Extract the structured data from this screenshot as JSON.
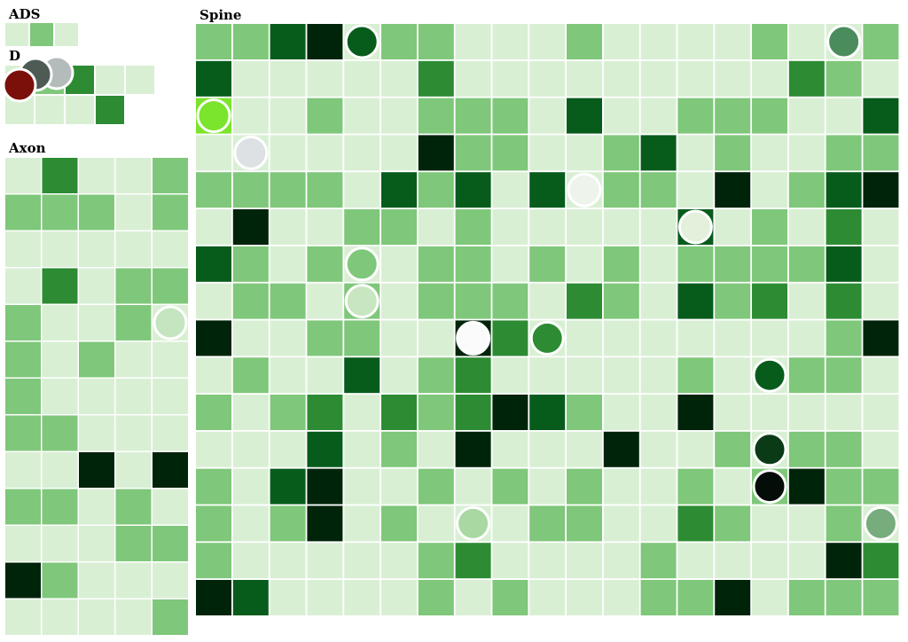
{
  "palette": {
    "0": "#d9efd4",
    "1": "#7fc77a",
    "2": "#2d8c33",
    "3": "#075c1c",
    "4": "#00240a",
    "cell_stroke": "#ffffff",
    "bubble_stroke": "#ffffff"
  },
  "panels": {
    "ads": {
      "title": "ADS"
    },
    "den": {
      "title": "D"
    },
    "axon": {
      "title": "Axon"
    },
    "spine": {
      "title": "Spine"
    }
  },
  "chart_data": [
    {
      "type": "heatmap",
      "name_shown": "ADS",
      "rows": 1,
      "cols": 3,
      "levels": [
        [
          0,
          1,
          0
        ]
      ],
      "markers": []
    },
    {
      "type": "heatmap",
      "name_shown": "D",
      "rows": 2,
      "cols": 5,
      "levels": [
        [
          0,
          1,
          2,
          0,
          0
        ],
        [
          0,
          0,
          0,
          2,
          null
        ]
      ],
      "markers": [
        {
          "row": 0,
          "col": 0,
          "color": "#b4bcbb"
        },
        {
          "row": 0,
          "col": 0,
          "color": "#4d5b54"
        },
        {
          "row": 0,
          "col": 0,
          "color": "#7b0f0a"
        }
      ]
    },
    {
      "type": "heatmap",
      "name_shown": "Axon",
      "rows": 13,
      "cols": 5,
      "levels": [
        [
          0,
          2,
          0,
          0,
          1
        ],
        [
          1,
          1,
          1,
          0,
          1
        ],
        [
          0,
          0,
          0,
          0,
          0
        ],
        [
          0,
          2,
          0,
          1,
          1
        ],
        [
          1,
          0,
          0,
          1,
          0
        ],
        [
          1,
          0,
          1,
          0,
          0
        ],
        [
          1,
          0,
          0,
          0,
          0
        ],
        [
          1,
          1,
          0,
          0,
          0
        ],
        [
          0,
          0,
          4,
          0,
          4
        ],
        [
          1,
          1,
          0,
          1,
          0
        ],
        [
          0,
          0,
          0,
          1,
          1
        ],
        [
          4,
          1,
          0,
          0,
          0
        ],
        [
          0,
          0,
          0,
          0,
          1
        ]
      ],
      "markers": [
        {
          "row": 4,
          "col": 4,
          "color": "#c4e5c0"
        }
      ]
    },
    {
      "type": "heatmap",
      "name_shown": "Spine",
      "rows": 16,
      "cols": 19,
      "levels": [
        [
          1,
          1,
          3,
          4,
          0,
          1,
          1,
          0,
          0,
          0,
          1,
          0,
          0,
          0,
          0,
          1,
          0,
          0,
          1
        ],
        [
          3,
          0,
          0,
          0,
          0,
          0,
          2,
          0,
          0,
          0,
          0,
          0,
          0,
          0,
          0,
          0,
          2,
          1,
          0
        ],
        [
          0,
          0,
          0,
          1,
          0,
          0,
          1,
          1,
          1,
          0,
          3,
          0,
          0,
          1,
          1,
          1,
          0,
          0,
          3
        ],
        [
          0,
          0,
          0,
          0,
          0,
          0,
          4,
          1,
          1,
          0,
          0,
          1,
          3,
          0,
          1,
          0,
          0,
          1,
          1
        ],
        [
          1,
          1,
          1,
          1,
          0,
          3,
          1,
          3,
          0,
          3,
          0,
          1,
          1,
          0,
          4,
          0,
          1,
          3,
          4
        ],
        [
          0,
          4,
          0,
          0,
          1,
          1,
          0,
          1,
          0,
          0,
          0,
          0,
          0,
          3,
          0,
          1,
          0,
          2,
          0
        ],
        [
          3,
          1,
          0,
          1,
          0,
          0,
          1,
          1,
          0,
          1,
          0,
          1,
          0,
          1,
          1,
          1,
          1,
          3,
          0
        ],
        [
          0,
          1,
          1,
          0,
          1,
          0,
          1,
          1,
          1,
          0,
          2,
          1,
          0,
          3,
          1,
          2,
          0,
          2,
          0
        ],
        [
          4,
          0,
          0,
          1,
          1,
          0,
          0,
          4,
          2,
          0,
          0,
          0,
          0,
          0,
          0,
          0,
          0,
          1,
          4
        ],
        [
          0,
          1,
          0,
          0,
          3,
          0,
          1,
          2,
          0,
          0,
          0,
          0,
          0,
          1,
          0,
          0,
          1,
          1,
          0
        ],
        [
          1,
          0,
          1,
          2,
          0,
          2,
          1,
          2,
          4,
          3,
          1,
          0,
          0,
          4,
          0,
          0,
          0,
          0,
          0
        ],
        [
          0,
          0,
          0,
          3,
          0,
          1,
          0,
          4,
          0,
          0,
          0,
          4,
          0,
          0,
          1,
          0,
          1,
          1,
          0
        ],
        [
          1,
          0,
          3,
          4,
          0,
          0,
          1,
          0,
          1,
          0,
          1,
          0,
          0,
          1,
          0,
          1,
          4,
          1,
          1
        ],
        [
          1,
          0,
          1,
          4,
          0,
          1,
          0,
          0,
          0,
          1,
          1,
          0,
          0,
          2,
          1,
          0,
          0,
          1,
          0
        ],
        [
          1,
          0,
          0,
          0,
          0,
          0,
          1,
          2,
          0,
          0,
          0,
          0,
          1,
          0,
          0,
          0,
          0,
          4,
          2
        ],
        [
          4,
          3,
          0,
          0,
          0,
          0,
          1,
          0,
          1,
          0,
          0,
          0,
          1,
          1,
          4,
          0,
          1,
          1,
          1
        ]
      ],
      "highlight_cells": [
        {
          "row": 2,
          "col": 0,
          "color": "#7be42c"
        }
      ],
      "markers": [
        {
          "row": 0,
          "col": 4,
          "color": "#075c1c"
        },
        {
          "row": 0,
          "col": 17,
          "color": "#4b8c5c"
        },
        {
          "row": 2,
          "col": 0,
          "color": "#7be42c"
        },
        {
          "row": 3,
          "col": 1,
          "color": "#dde1e4"
        },
        {
          "row": 4,
          "col": 10,
          "color": "#eef4ec"
        },
        {
          "row": 5,
          "col": 13,
          "color": "#e2f0dc"
        },
        {
          "row": 6,
          "col": 4,
          "color": "#7fc77a"
        },
        {
          "row": 7,
          "col": 4,
          "color": "#c8e6c0"
        },
        {
          "row": 8,
          "col": 7,
          "color": "#fbfbfb"
        },
        {
          "row": 8,
          "col": 9,
          "color": "#2d8c33"
        },
        {
          "row": 9,
          "col": 15,
          "color": "#075c1c"
        },
        {
          "row": 11,
          "col": 15,
          "color": "#0a3a16"
        },
        {
          "row": 12,
          "col": 15,
          "color": "#050d08"
        },
        {
          "row": 13,
          "col": 7,
          "color": "#a9d8a2"
        },
        {
          "row": 13,
          "col": 18,
          "color": "#77ac7c"
        }
      ]
    }
  ]
}
